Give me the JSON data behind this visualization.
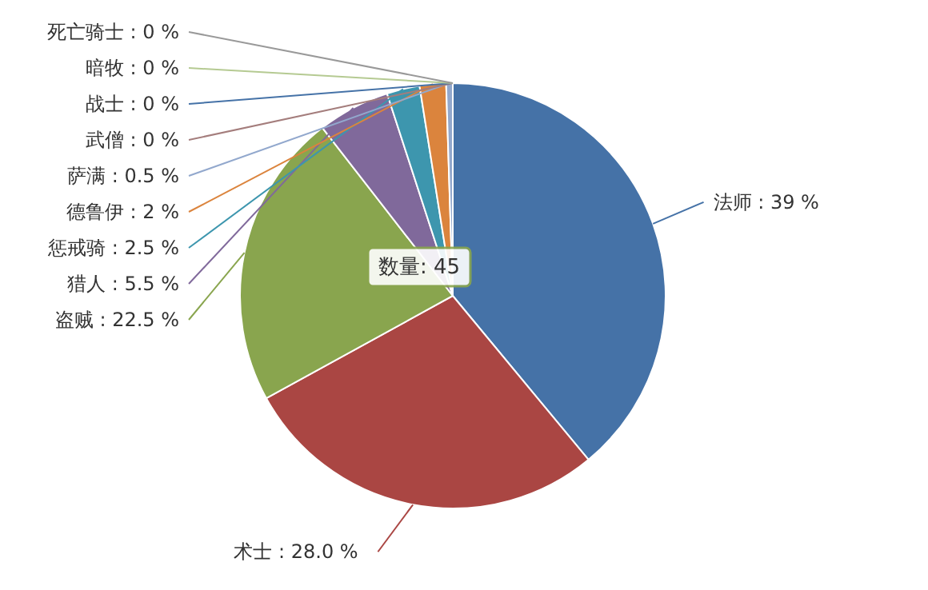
{
  "chart_data": {
    "type": "pie",
    "categories": [
      "法师",
      "术士",
      "盗贼",
      "猎人",
      "惩戒骑",
      "德鲁伊",
      "萨满",
      "武僧",
      "战士",
      "暗牧",
      "死亡骑士"
    ],
    "values": [
      39,
      28.0,
      22.5,
      5.5,
      2.5,
      2,
      0.5,
      0,
      0,
      0,
      0
    ],
    "value_labels": [
      ": 39 %",
      ": 28.0 %",
      ": 22.5 %",
      ": 5.5 %",
      ": 2.5 %",
      ": 2 %",
      ": 0.5 %",
      ": 0 %",
      ": 0 %",
      ": 0 %",
      ": 0 %"
    ],
    "colors": [
      "#4572a7",
      "#aa4643",
      "#89a54e",
      "#80699b",
      "#3d96ae",
      "#db843d",
      "#92a8cd",
      "#a47d7c",
      "#4572a7",
      "#b5ca92",
      "#999999"
    ],
    "annotations": [
      "数量: 45"
    ]
  }
}
